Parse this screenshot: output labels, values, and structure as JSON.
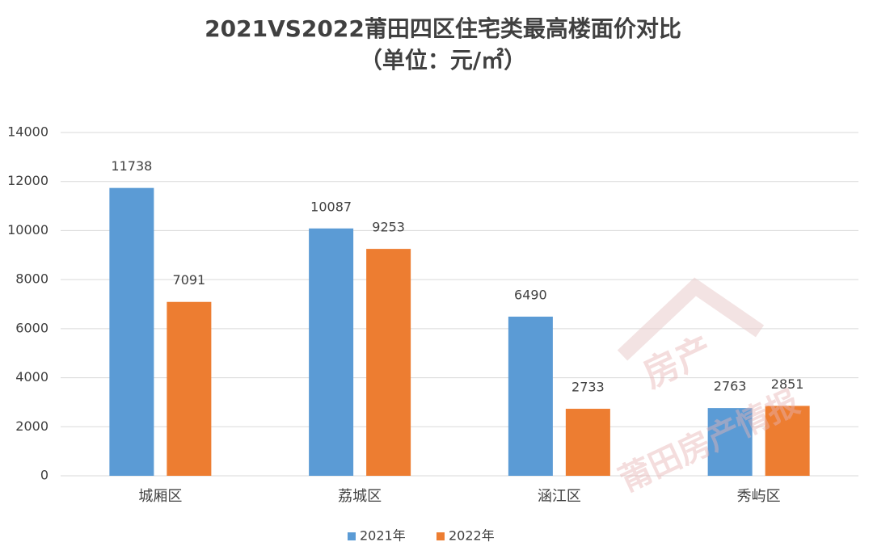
{
  "chart_data": {
    "type": "bar",
    "title": "2021VS2022莆田四区住宅类最高楼面价对比",
    "subtitle": "（单位：元/㎡）",
    "categories": [
      "城厢区",
      "荔城区",
      "涵江区",
      "秀屿区"
    ],
    "series": [
      {
        "name": "2021年",
        "color": "#5b9bd5",
        "values": [
          11738,
          10087,
          6490,
          2763
        ]
      },
      {
        "name": "2022年",
        "color": "#ed7d31",
        "values": [
          7091,
          9253,
          2733,
          2851
        ]
      }
    ],
    "ylim": [
      0,
      14000
    ],
    "yticks": [
      0,
      2000,
      4000,
      6000,
      8000,
      10000,
      12000,
      14000
    ],
    "grid": true,
    "legend": "bottom",
    "watermark": [
      "房产",
      "莆田房产情报"
    ]
  }
}
